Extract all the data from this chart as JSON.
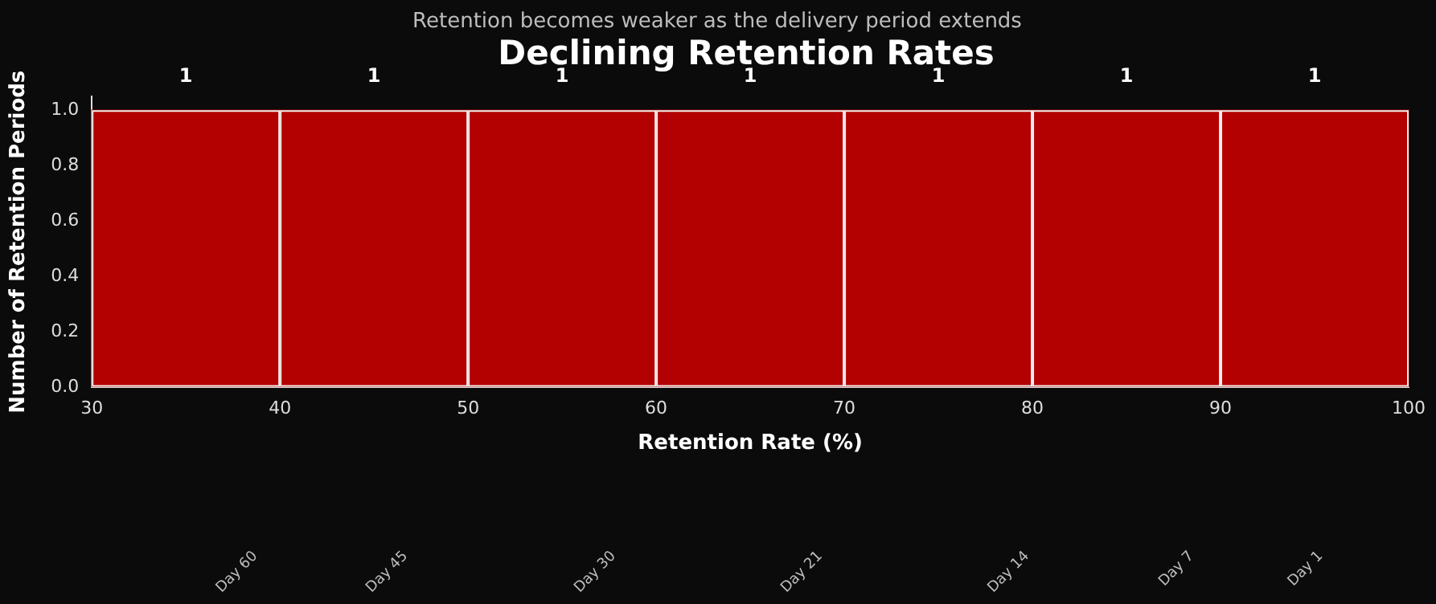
{
  "chart_data": {
    "type": "histogram",
    "title": "Declining Retention Rates",
    "subtitle": "Retention becomes weaker as the delivery period extends",
    "xlabel": "Retention Rate (%)",
    "ylabel": "Number of Retention Periods",
    "bins": [
      30,
      40,
      50,
      60,
      70,
      80,
      90,
      100
    ],
    "values": [
      1,
      1,
      1,
      1,
      1,
      1,
      1
    ],
    "color": "#b30000",
    "xlim": [
      30,
      100
    ],
    "xticks": [
      30,
      40,
      50,
      60,
      70,
      80,
      90,
      100
    ],
    "ylim": [
      0,
      1.05
    ],
    "yticks": [
      {
        "value": 0,
        "label": "0.0"
      },
      {
        "value": 0.2,
        "label": "0.2"
      },
      {
        "value": 0.4,
        "label": "0.4"
      },
      {
        "value": 0.6,
        "label": "0.6"
      },
      {
        "value": 0.8,
        "label": "0.8"
      },
      {
        "value": 1,
        "label": "1.0"
      }
    ],
    "data_labels": true,
    "grid": false,
    "legend": false,
    "annotations": [
      "Day 60",
      "Day 45",
      "Day 30",
      "Day 21",
      "Day 14",
      "Day 7",
      "Day 1"
    ]
  }
}
